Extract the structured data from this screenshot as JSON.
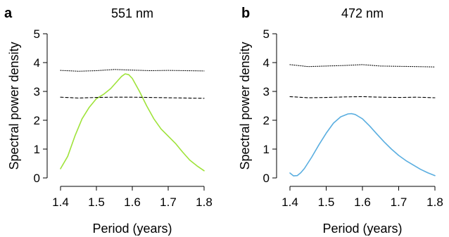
{
  "chart_data": [
    {
      "type": "line",
      "panel_label": "a",
      "title": "551 nm",
      "xlabel": "Period (years)",
      "ylabel": "Spectral power density",
      "xlim": [
        1.4,
        1.8
      ],
      "ylim": [
        0,
        5
      ],
      "x_ticks": [
        "1.4",
        "1.5",
        "1.6",
        "1.7",
        "1.8"
      ],
      "y_ticks": [
        "0",
        "1",
        "2",
        "3",
        "4",
        "5"
      ],
      "series": [
        {
          "style": "solid",
          "color": "#9fe33a",
          "x": [
            1.4,
            1.42,
            1.44,
            1.46,
            1.48,
            1.5,
            1.52,
            1.54,
            1.56,
            1.57,
            1.58,
            1.59,
            1.6,
            1.62,
            1.64,
            1.66,
            1.68,
            1.7,
            1.72,
            1.74,
            1.76,
            1.78,
            1.8
          ],
          "y": [
            0.32,
            0.75,
            1.45,
            2.05,
            2.45,
            2.75,
            2.9,
            3.1,
            3.38,
            3.52,
            3.61,
            3.58,
            3.45,
            3.0,
            2.5,
            2.05,
            1.7,
            1.45,
            1.2,
            0.9,
            0.62,
            0.42,
            0.25
          ]
        },
        {
          "style": "dashed",
          "color": "#000000",
          "x": [
            1.4,
            1.45,
            1.5,
            1.55,
            1.6,
            1.65,
            1.7,
            1.75,
            1.8
          ],
          "y": [
            2.8,
            2.77,
            2.79,
            2.8,
            2.8,
            2.79,
            2.78,
            2.77,
            2.76
          ]
        },
        {
          "style": "dotted",
          "color": "#000000",
          "x": [
            1.4,
            1.45,
            1.5,
            1.55,
            1.6,
            1.65,
            1.7,
            1.75,
            1.8
          ],
          "y": [
            3.73,
            3.7,
            3.72,
            3.76,
            3.74,
            3.72,
            3.73,
            3.72,
            3.71
          ]
        }
      ]
    },
    {
      "type": "line",
      "panel_label": "b",
      "title": "472 nm",
      "xlabel": "Period (years)",
      "ylabel": "Spectral power density",
      "xlim": [
        1.4,
        1.8
      ],
      "ylim": [
        0,
        5
      ],
      "x_ticks": [
        "1.4",
        "1.5",
        "1.6",
        "1.7",
        "1.8"
      ],
      "y_ticks": [
        "0",
        "1",
        "2",
        "3",
        "4",
        "5"
      ],
      "series": [
        {
          "style": "solid",
          "color": "#5aaee0",
          "x": [
            1.4,
            1.41,
            1.42,
            1.43,
            1.44,
            1.46,
            1.48,
            1.5,
            1.52,
            1.54,
            1.56,
            1.57,
            1.58,
            1.6,
            1.62,
            1.64,
            1.66,
            1.68,
            1.7,
            1.72,
            1.74,
            1.76,
            1.78,
            1.8
          ],
          "y": [
            0.17,
            0.07,
            0.08,
            0.18,
            0.33,
            0.72,
            1.15,
            1.55,
            1.9,
            2.12,
            2.22,
            2.23,
            2.2,
            2.05,
            1.8,
            1.52,
            1.25,
            1.0,
            0.78,
            0.6,
            0.45,
            0.3,
            0.18,
            0.08
          ]
        },
        {
          "style": "dashed",
          "color": "#000000",
          "x": [
            1.4,
            1.45,
            1.5,
            1.55,
            1.6,
            1.65,
            1.7,
            1.75,
            1.8
          ],
          "y": [
            2.82,
            2.78,
            2.79,
            2.81,
            2.82,
            2.8,
            2.79,
            2.8,
            2.78
          ]
        },
        {
          "style": "dotted",
          "color": "#000000",
          "x": [
            1.4,
            1.45,
            1.5,
            1.55,
            1.6,
            1.65,
            1.7,
            1.75,
            1.8
          ],
          "y": [
            3.93,
            3.86,
            3.88,
            3.9,
            3.93,
            3.88,
            3.87,
            3.86,
            3.85
          ]
        }
      ]
    }
  ]
}
